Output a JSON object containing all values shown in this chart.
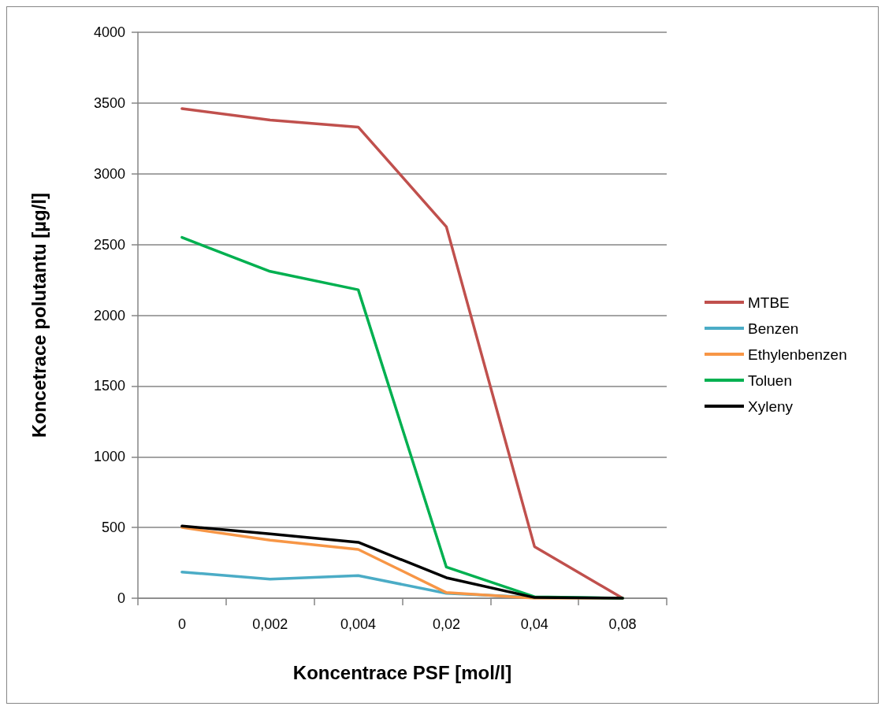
{
  "chart_data": {
    "type": "line",
    "xlabel": "Koncentrace PSF [mol/l]",
    "ylabel": "Koncetrace polutantu [µg/l]",
    "categories": [
      "0",
      "0,002",
      "0,004",
      "0,02",
      "0,04",
      "0,08"
    ],
    "series": [
      {
        "name": "MTBE",
        "color": "#c0504d",
        "values": [
          3460,
          3380,
          3330,
          2625,
          365,
          0
        ]
      },
      {
        "name": "Benzen",
        "color": "#4bacc6",
        "values": [
          185,
          135,
          160,
          35,
          5,
          0
        ]
      },
      {
        "name": "Ethylenbenzen",
        "color": "#f79646",
        "values": [
          500,
          410,
          345,
          40,
          0,
          0
        ]
      },
      {
        "name": "Toluen",
        "color": "#00b050",
        "values": [
          2550,
          2310,
          2180,
          220,
          10,
          0
        ]
      },
      {
        "name": "Xyleny",
        "color": "#000000",
        "values": [
          510,
          455,
          395,
          145,
          5,
          0
        ]
      }
    ],
    "ylim": [
      0,
      4000
    ],
    "yticks": [
      0,
      500,
      1000,
      1500,
      2000,
      2500,
      3000,
      3500,
      4000
    ],
    "grid": "y",
    "legend": "right",
    "marker": "none",
    "line_style": "solid"
  }
}
